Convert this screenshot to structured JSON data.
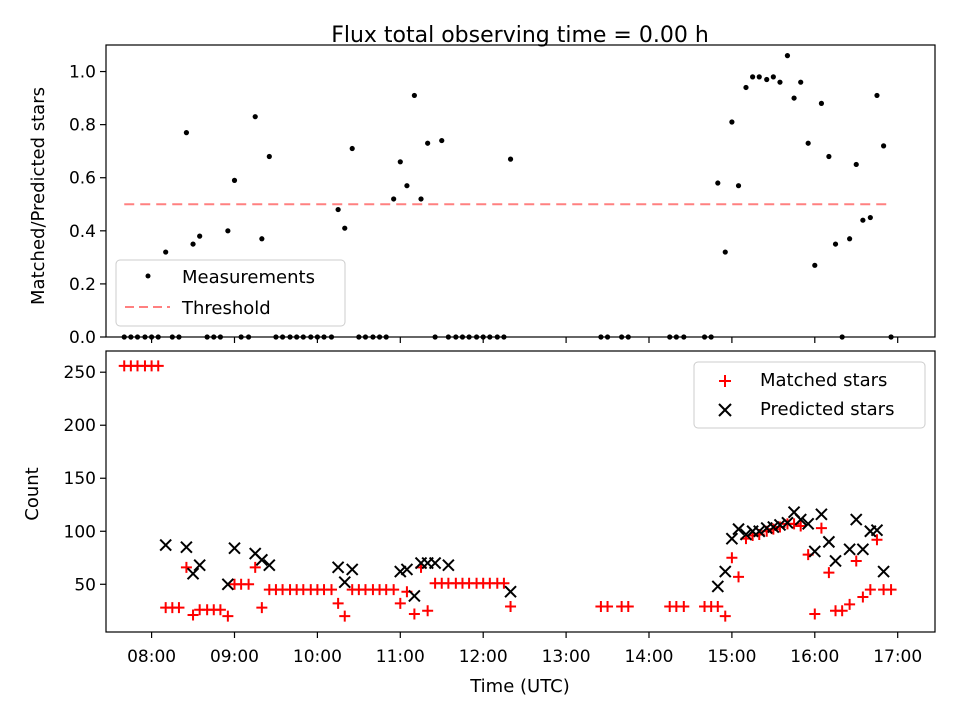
{
  "chart_data": [
    {
      "type": "scatter",
      "title": "Flux total observing time = 0.00 h",
      "xlabel": "",
      "ylabel": "Matched/Predicted stars",
      "xlim": [
        7.45,
        17.45
      ],
      "ylim": [
        0,
        1.1
      ],
      "yticks": [
        0.0,
        0.2,
        0.4,
        0.6,
        0.8,
        1.0
      ],
      "ytick_labels": [
        "0.0",
        "0.2",
        "0.4",
        "0.6",
        "0.8",
        "1.0"
      ],
      "xticks": [
        8,
        9,
        10,
        11,
        12,
        13,
        14,
        15,
        16,
        17
      ],
      "legend": {
        "position": "lower-left",
        "entries": [
          "Measurements",
          "Threshold"
        ]
      },
      "threshold": {
        "name": "Threshold",
        "value": 0.5,
        "x_range": [
          7.67,
          16.87
        ],
        "color": "#ff8080"
      },
      "series": [
        {
          "name": "Measurements",
          "color": "#000000",
          "x": [
            7.67,
            7.75,
            7.83,
            7.92,
            8.0,
            8.08,
            8.17,
            8.25,
            8.33,
            8.42,
            8.5,
            8.58,
            8.67,
            8.75,
            8.83,
            8.92,
            9.0,
            9.08,
            9.17,
            9.25,
            9.33,
            9.42,
            9.5,
            9.58,
            9.67,
            9.75,
            9.83,
            9.92,
            10.0,
            10.08,
            10.17,
            10.25,
            10.33,
            10.42,
            10.5,
            10.58,
            10.67,
            10.75,
            10.83,
            10.92,
            11.0,
            11.08,
            11.17,
            11.25,
            11.33,
            11.42,
            11.5,
            11.58,
            11.67,
            11.75,
            11.83,
            11.92,
            12.0,
            12.08,
            12.17,
            12.25,
            12.33,
            13.42,
            13.5,
            13.67,
            13.75,
            14.25,
            14.33,
            14.42,
            14.67,
            14.75,
            14.83,
            14.92,
            15.0,
            15.08,
            15.17,
            15.25,
            15.33,
            15.42,
            15.5,
            15.58,
            15.67,
            15.75,
            15.83,
            15.92,
            16.0,
            16.08,
            16.17,
            16.25,
            16.33,
            16.42,
            16.5,
            16.58,
            16.67,
            16.75,
            16.83,
            16.92
          ],
          "y": [
            0.0,
            0.0,
            0.0,
            0.0,
            0.0,
            0.0,
            0.32,
            0.0,
            0.0,
            0.77,
            0.35,
            0.38,
            0.0,
            0.0,
            0.0,
            0.4,
            0.59,
            0.0,
            0.0,
            0.83,
            0.37,
            0.68,
            0.0,
            0.0,
            0.0,
            0.0,
            0.0,
            0.0,
            0.0,
            0.0,
            0.0,
            0.48,
            0.41,
            0.71,
            0.0,
            0.0,
            0.0,
            0.0,
            0.0,
            0.52,
            0.66,
            0.57,
            0.91,
            0.52,
            0.73,
            0.0,
            0.74,
            0.0,
            0.0,
            0.0,
            0.0,
            0.0,
            0.0,
            0.0,
            0.0,
            0.0,
            0.67,
            0.0,
            0.0,
            0.0,
            0.0,
            0.0,
            0.0,
            0.0,
            0.0,
            0.0,
            0.58,
            0.32,
            0.81,
            0.57,
            0.94,
            0.98,
            0.98,
            0.97,
            0.98,
            0.96,
            1.06,
            0.9,
            0.96,
            0.73,
            0.27,
            0.88,
            0.68,
            0.35,
            0.0,
            0.37,
            0.65,
            0.44,
            0.45,
            0.91,
            0.72,
            0.0
          ]
        }
      ]
    },
    {
      "type": "scatter",
      "title": "",
      "xlabel": "Time (UTC)",
      "ylabel": "Count",
      "xlim": [
        7.45,
        17.45
      ],
      "ylim": [
        5,
        270
      ],
      "yticks": [
        50,
        100,
        150,
        200,
        250
      ],
      "ytick_labels": [
        "50",
        "100",
        "150",
        "200",
        "250"
      ],
      "xticks": [
        8,
        9,
        10,
        11,
        12,
        13,
        14,
        15,
        16,
        17
      ],
      "xtick_labels": [
        "08:00",
        "09:00",
        "10:00",
        "11:00",
        "12:00",
        "13:00",
        "14:00",
        "15:00",
        "16:00",
        "17:00"
      ],
      "legend": {
        "position": "upper-right",
        "entries": [
          "Matched stars",
          "Predicted stars"
        ]
      },
      "series": [
        {
          "name": "Matched stars",
          "marker": "plus",
          "color": "#ff0000",
          "x": [
            7.67,
            7.75,
            7.83,
            7.92,
            8.0,
            8.08,
            8.17,
            8.25,
            8.33,
            8.42,
            8.5,
            8.58,
            8.67,
            8.75,
            8.83,
            8.92,
            9.0,
            9.08,
            9.17,
            9.25,
            9.33,
            9.42,
            9.5,
            9.58,
            9.67,
            9.75,
            9.83,
            9.92,
            10.0,
            10.08,
            10.17,
            10.25,
            10.33,
            10.42,
            10.5,
            10.58,
            10.67,
            10.75,
            10.83,
            10.92,
            11.0,
            11.08,
            11.17,
            11.25,
            11.33,
            11.42,
            11.5,
            11.58,
            11.67,
            11.75,
            11.83,
            11.92,
            12.0,
            12.08,
            12.17,
            12.25,
            12.33,
            13.42,
            13.5,
            13.67,
            13.75,
            14.25,
            14.33,
            14.42,
            14.67,
            14.75,
            14.83,
            14.92,
            15.0,
            15.08,
            15.17,
            15.25,
            15.33,
            15.42,
            15.5,
            15.58,
            15.67,
            15.75,
            15.83,
            15.92,
            16.0,
            16.08,
            16.17,
            16.25,
            16.33,
            16.42,
            16.5,
            16.58,
            16.67,
            16.75,
            16.83,
            16.92
          ],
          "y": [
            256,
            256,
            256,
            256,
            256,
            256,
            28,
            28,
            28,
            66,
            21,
            26,
            26,
            26,
            26,
            20,
            50,
            50,
            50,
            66,
            28,
            45,
            45,
            45,
            45,
            45,
            45,
            45,
            45,
            45,
            45,
            32,
            20,
            45,
            45,
            45,
            45,
            45,
            45,
            45,
            32,
            43,
            22,
            66,
            25,
            51,
            51,
            51,
            51,
            51,
            51,
            51,
            51,
            51,
            51,
            51,
            29,
            29,
            29,
            29,
            29,
            29,
            29,
            29,
            29,
            29,
            29,
            20,
            75,
            57,
            93,
            96,
            97,
            100,
            102,
            104,
            107,
            107,
            105,
            78,
            22,
            103,
            61,
            25,
            25,
            31,
            72,
            38,
            45,
            92,
            45,
            45
          ]
        },
        {
          "name": "Predicted stars",
          "marker": "x",
          "color": "#000000",
          "x": [
            8.17,
            8.42,
            8.5,
            8.58,
            8.92,
            9.0,
            9.25,
            9.33,
            9.42,
            10.25,
            10.33,
            10.42,
            11.0,
            11.08,
            11.17,
            11.25,
            11.33,
            11.42,
            11.58,
            12.33,
            14.83,
            14.92,
            15.0,
            15.08,
            15.17,
            15.25,
            15.33,
            15.42,
            15.5,
            15.58,
            15.67,
            15.75,
            15.83,
            15.92,
            16.0,
            16.08,
            16.17,
            16.25,
            16.42,
            16.5,
            16.58,
            16.67,
            16.75,
            16.83
          ],
          "y": [
            87,
            85,
            60,
            68,
            50,
            84,
            79,
            73,
            68,
            66,
            52,
            64,
            62,
            64,
            39,
            70,
            70,
            70,
            68,
            43,
            48,
            62,
            93,
            102,
            97,
            100,
            100,
            103,
            104,
            106,
            108,
            118,
            111,
            107,
            81,
            116,
            90,
            72,
            83,
            111,
            83,
            100,
            101,
            62
          ]
        }
      ]
    }
  ]
}
